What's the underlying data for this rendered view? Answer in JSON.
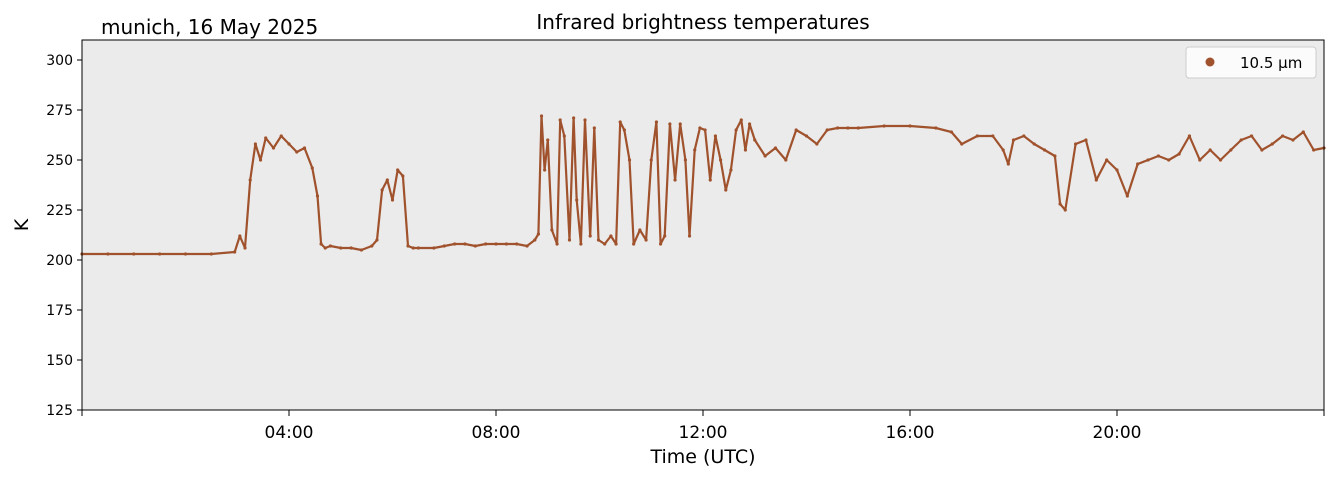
{
  "location_date": "munich, 16 May 2025",
  "chart_data": {
    "type": "scatter",
    "title": "Infrared brightness temperatures",
    "xlabel": "Time (UTC)",
    "ylabel": "K",
    "xlim_hours": [
      0,
      24
    ],
    "ylim": [
      125,
      310
    ],
    "xticks": [
      {
        "hour": 4,
        "label": "04:00"
      },
      {
        "hour": 8,
        "label": "08:00"
      },
      {
        "hour": 12,
        "label": "12:00"
      },
      {
        "hour": 16,
        "label": "16:00"
      },
      {
        "hour": 20,
        "label": "20:00"
      }
    ],
    "yticks": [
      125,
      150,
      175,
      200,
      225,
      250,
      275,
      300
    ],
    "legend_position": "top-right",
    "background": "#ebebeb",
    "series": [
      {
        "name": "10.5 µm",
        "color": "#a0522d",
        "x_hours": [
          0.0,
          0.5,
          1.0,
          1.5,
          2.0,
          2.5,
          2.95,
          3.05,
          3.15,
          3.25,
          3.35,
          3.45,
          3.55,
          3.7,
          3.85,
          4.0,
          4.15,
          4.3,
          4.45,
          4.55,
          4.62,
          4.7,
          4.8,
          5.0,
          5.2,
          5.4,
          5.6,
          5.7,
          5.8,
          5.9,
          6.0,
          6.1,
          6.2,
          6.3,
          6.4,
          6.5,
          6.8,
          7.0,
          7.2,
          7.4,
          7.6,
          7.8,
          8.0,
          8.2,
          8.4,
          8.6,
          8.75,
          8.82,
          8.88,
          8.94,
          9.0,
          9.08,
          9.18,
          9.24,
          9.32,
          9.42,
          9.5,
          9.56,
          9.64,
          9.72,
          9.82,
          9.9,
          9.98,
          10.1,
          10.22,
          10.32,
          10.4,
          10.48,
          10.58,
          10.66,
          10.78,
          10.9,
          11.0,
          11.1,
          11.18,
          11.26,
          11.36,
          11.46,
          11.56,
          11.66,
          11.74,
          11.84,
          11.94,
          12.04,
          12.14,
          12.24,
          12.34,
          12.44,
          12.54,
          12.64,
          12.74,
          12.82,
          12.9,
          13.0,
          13.2,
          13.4,
          13.6,
          13.8,
          14.0,
          14.2,
          14.4,
          14.6,
          14.8,
          15.0,
          15.5,
          16.0,
          16.5,
          16.8,
          17.0,
          17.3,
          17.6,
          17.8,
          17.9,
          18.0,
          18.2,
          18.4,
          18.6,
          18.8,
          18.9,
          19.0,
          19.2,
          19.4,
          19.6,
          19.8,
          20.0,
          20.2,
          20.4,
          20.6,
          20.8,
          21.0,
          21.2,
          21.4,
          21.6,
          21.8,
          22.0,
          22.2,
          22.4,
          22.6,
          22.8,
          23.0,
          23.2,
          23.4,
          23.6,
          23.8,
          24.0
        ],
        "values_K": [
          203,
          203,
          203,
          203,
          203,
          203,
          204,
          212,
          206,
          240,
          258,
          250,
          261,
          256,
          262,
          258,
          254,
          256,
          246,
          232,
          208,
          206,
          207,
          206,
          206,
          205,
          207,
          210,
          235,
          240,
          230,
          245,
          242,
          207,
          206,
          206,
          206,
          207,
          208,
          208,
          207,
          208,
          208,
          208,
          208,
          207,
          210,
          213,
          272,
          245,
          260,
          215,
          208,
          270,
          262,
          210,
          271,
          230,
          208,
          270,
          212,
          266,
          210,
          208,
          212,
          208,
          269,
          265,
          250,
          208,
          215,
          210,
          250,
          269,
          208,
          212,
          268,
          240,
          268,
          250,
          212,
          255,
          266,
          265,
          240,
          262,
          250,
          235,
          245,
          265,
          270,
          255,
          268,
          260,
          252,
          256,
          250,
          265,
          262,
          258,
          265,
          266,
          266,
          266,
          267,
          267,
          266,
          264,
          258,
          262,
          262,
          255,
          248,
          260,
          262,
          258,
          255,
          252,
          228,
          225,
          258,
          260,
          240,
          250,
          245,
          232,
          248,
          250,
          252,
          250,
          253,
          262,
          250,
          255,
          250,
          255,
          260,
          262,
          255,
          258,
          262,
          260,
          264,
          255,
          256
        ]
      }
    ]
  }
}
